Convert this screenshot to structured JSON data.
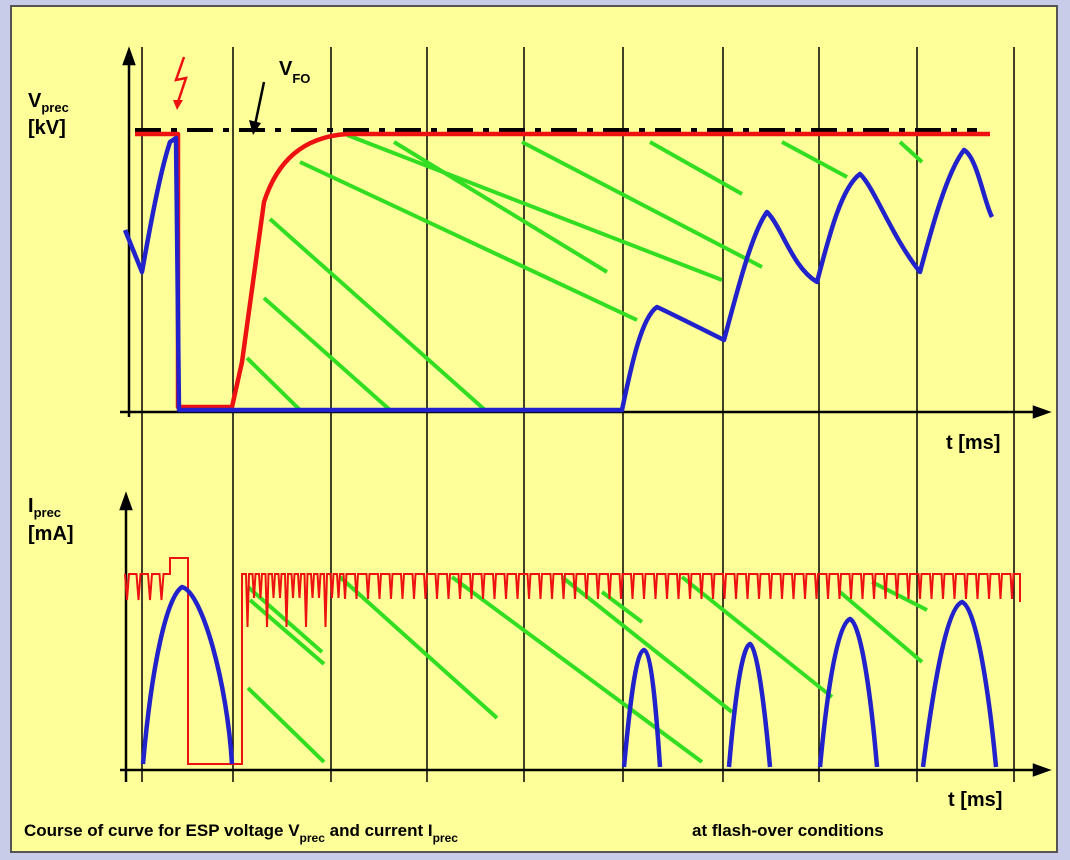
{
  "top_plot": {
    "y_label": "V",
    "y_label_sub": "prec",
    "y_unit": "[kV]",
    "x_label": "t [ms]",
    "flashover_label": "V",
    "flashover_sub": "FO"
  },
  "bottom_plot": {
    "y_label": "I",
    "y_label_sub": "prec",
    "y_unit": "[mA]",
    "x_label": "t [ms]"
  },
  "caption": {
    "part1": "Course of curve for ESP voltage V",
    "sub1": "prec",
    "part2": " and current I",
    "sub2": "prec",
    "part3": "at flash-over conditions"
  },
  "colors": {
    "background": "#ffff99",
    "frame": "#c8cce8",
    "blue_curve": "#2222cc",
    "red_curve": "#ee1111",
    "green_hatch": "#33dd22",
    "flashover_symbol": "#ee1111"
  }
}
